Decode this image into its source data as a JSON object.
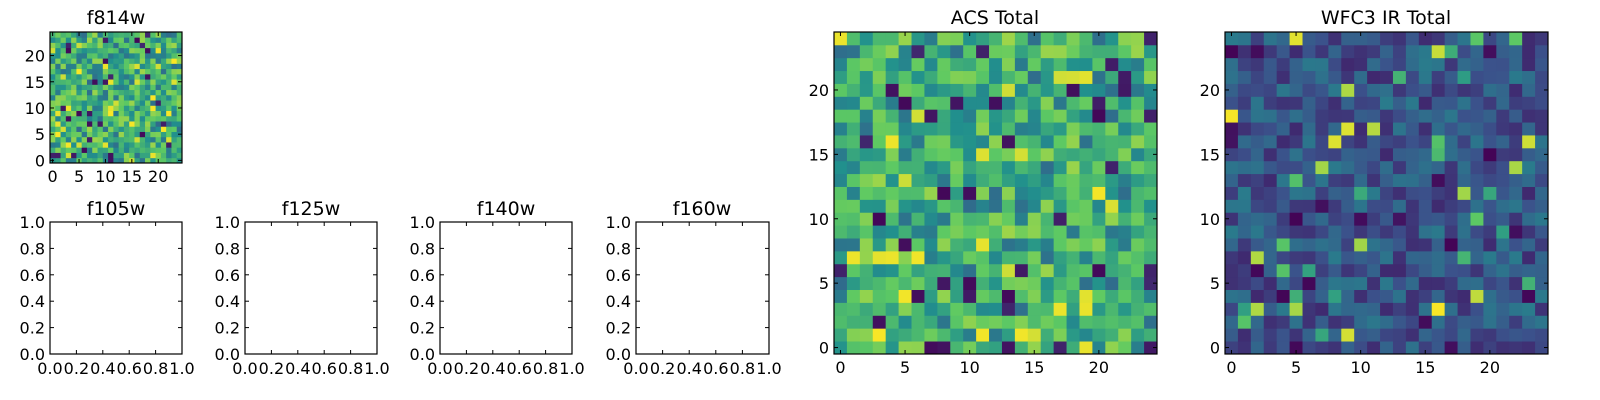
{
  "colormap": [
    "#440154",
    "#3b528b",
    "#21908d",
    "#5dc963",
    "#fde725"
  ],
  "chart_data": [
    {
      "id": "f814w",
      "type": "heatmap",
      "title": "f814w",
      "grid_size": 25,
      "xticks": [
        "0",
        "5",
        "10",
        "15",
        "20"
      ],
      "yticks": [
        "0",
        "5",
        "10",
        "15",
        "20"
      ],
      "value_range": [
        0,
        1
      ],
      "seed": 11,
      "dist": "acs"
    },
    {
      "id": "f105w",
      "type": "empty",
      "title": "f105w",
      "xticks": [
        "0.0",
        "0.2",
        "0.4",
        "0.6",
        "0.8",
        "1.0"
      ],
      "yticks": [
        "0.0",
        "0.2",
        "0.4",
        "0.6",
        "0.8",
        "1.0"
      ],
      "xlim": [
        0,
        1
      ],
      "ylim": [
        0,
        1
      ]
    },
    {
      "id": "f125w",
      "type": "empty",
      "title": "f125w",
      "xticks": [
        "0.0",
        "0.2",
        "0.4",
        "0.6",
        "0.8",
        "1.0"
      ],
      "yticks": [
        "0.0",
        "0.2",
        "0.4",
        "0.6",
        "0.8",
        "1.0"
      ],
      "xlim": [
        0,
        1
      ],
      "ylim": [
        0,
        1
      ]
    },
    {
      "id": "f140w",
      "type": "empty",
      "title": "f140w",
      "xticks": [
        "0.0",
        "0.2",
        "0.4",
        "0.6",
        "0.8",
        "1.0"
      ],
      "yticks": [
        "0.0",
        "0.2",
        "0.4",
        "0.6",
        "0.8",
        "1.0"
      ],
      "xlim": [
        0,
        1
      ],
      "ylim": [
        0,
        1
      ]
    },
    {
      "id": "f160w",
      "type": "empty",
      "title": "f160w",
      "xticks": [
        "0.0",
        "0.2",
        "0.4",
        "0.6",
        "0.8",
        "1.0"
      ],
      "yticks": [
        "0.0",
        "0.2",
        "0.4",
        "0.6",
        "0.8",
        "1.0"
      ],
      "xlim": [
        0,
        1
      ],
      "ylim": [
        0,
        1
      ]
    },
    {
      "id": "acs-total",
      "type": "heatmap",
      "title": "ACS Total",
      "grid_size": 25,
      "xticks": [
        "0",
        "5",
        "10",
        "15",
        "20"
      ],
      "yticks": [
        "0",
        "5",
        "10",
        "15",
        "20"
      ],
      "value_range": [
        0,
        1
      ],
      "seed": 29,
      "dist": "acs"
    },
    {
      "id": "wfc3-ir-total",
      "type": "heatmap",
      "title": "WFC3 IR Total",
      "grid_size": 25,
      "xticks": [
        "0",
        "5",
        "10",
        "15",
        "20"
      ],
      "yticks": [
        "0",
        "5",
        "10",
        "15",
        "20"
      ],
      "value_range": [
        0,
        1
      ],
      "seed": 53,
      "dist": "ir"
    }
  ]
}
